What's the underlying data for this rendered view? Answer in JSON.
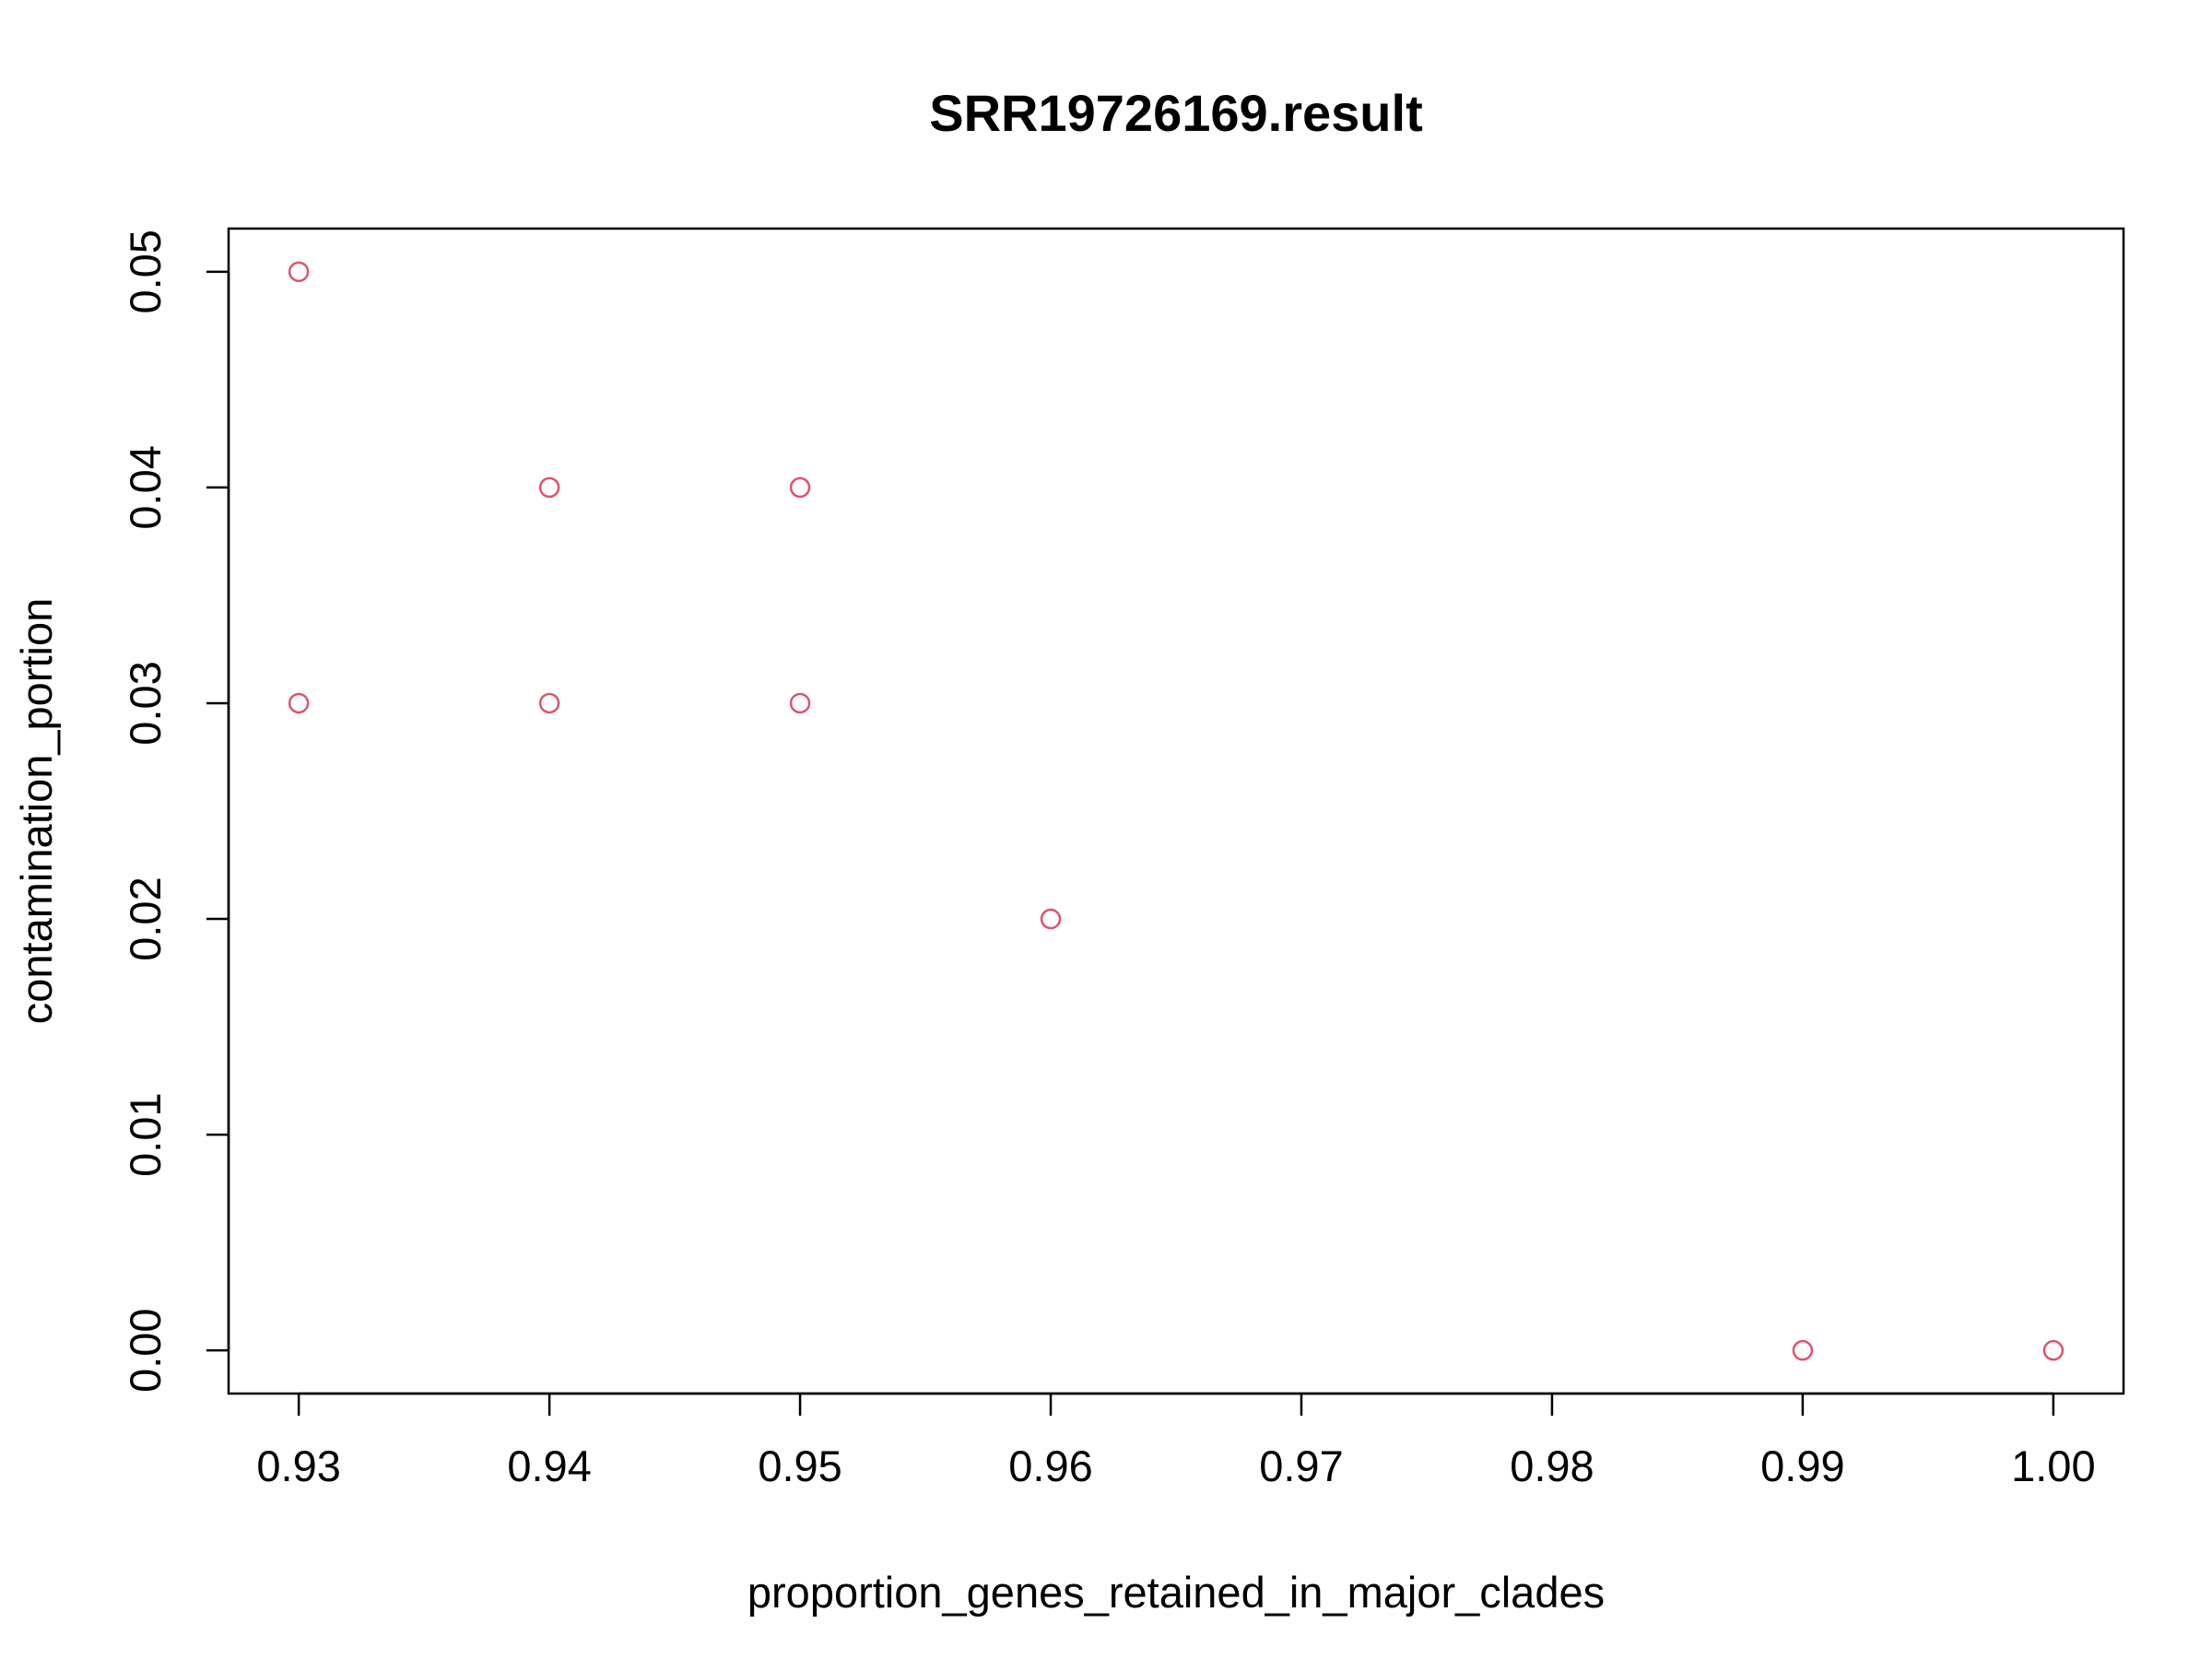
{
  "chart_data": {
    "type": "scatter",
    "title": "SRR19726169.result",
    "xlabel": "proportion_genes_retained_in_major_clades",
    "ylabel": "contamination_portion",
    "xlim": [
      0.9272,
      1.0028
    ],
    "ylim": [
      -0.002,
      0.052
    ],
    "xticks": [
      0.93,
      0.94,
      0.95,
      0.96,
      0.97,
      0.98,
      0.99,
      1.0
    ],
    "xtick_labels": [
      "0.93",
      "0.94",
      "0.95",
      "0.96",
      "0.97",
      "0.98",
      "0.99",
      "1.00"
    ],
    "yticks": [
      0.0,
      0.01,
      0.02,
      0.03,
      0.04,
      0.05
    ],
    "ytick_labels": [
      "0.00",
      "0.01",
      "0.02",
      "0.03",
      "0.04",
      "0.05"
    ],
    "grid": false,
    "marker": "open-circle",
    "point_color": "#DF536B",
    "points": [
      {
        "x": 0.93,
        "y": 0.05
      },
      {
        "x": 0.93,
        "y": 0.03
      },
      {
        "x": 0.94,
        "y": 0.04
      },
      {
        "x": 0.94,
        "y": 0.03
      },
      {
        "x": 0.95,
        "y": 0.04
      },
      {
        "x": 0.95,
        "y": 0.03
      },
      {
        "x": 0.96,
        "y": 0.02
      },
      {
        "x": 0.99,
        "y": 0.0
      },
      {
        "x": 1.0,
        "y": 0.0
      }
    ]
  }
}
